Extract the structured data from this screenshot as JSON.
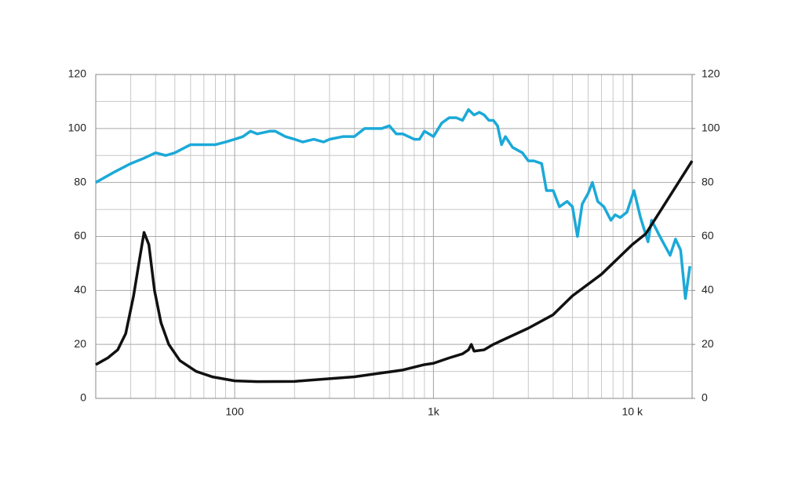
{
  "chart_data": {
    "type": "line",
    "xlog": true,
    "grid": true,
    "minor_grid": true,
    "xlim": [
      20,
      20000
    ],
    "xticks": [
      100,
      {
        "value": 1000,
        "label": "1k"
      },
      {
        "value": 10000,
        "label": "10 k"
      }
    ],
    "ylim": [
      0,
      120
    ],
    "yticks": [
      0,
      20,
      40,
      60,
      80,
      100,
      120
    ],
    "y2lim": [
      0,
      120
    ],
    "y2ticks": [
      0,
      20,
      40,
      60,
      80,
      100,
      120
    ],
    "series": [
      {
        "color": "#1ba9d8",
        "x": [
          20,
          25,
          30,
          35,
          40,
          45,
          50,
          60,
          70,
          80,
          90,
          100,
          110,
          120,
          130,
          150,
          160,
          180,
          200,
          220,
          250,
          280,
          300,
          350,
          400,
          450,
          500,
          550,
          600,
          650,
          700,
          800,
          850,
          900,
          1000,
          1100,
          1200,
          1300,
          1400,
          1500,
          1600,
          1700,
          1800,
          1900,
          2000,
          2100,
          2200,
          2300,
          2500,
          2800,
          3000,
          3200,
          3500,
          3700,
          4000,
          4300,
          4700,
          5000,
          5300,
          5600,
          6000,
          6300,
          6700,
          7200,
          7800,
          8200,
          8700,
          9400,
          10200,
          11000,
          12000,
          12500,
          14000,
          15500,
          16500,
          17500,
          18500,
          19500
        ],
        "values": [
          80,
          84,
          87,
          89,
          91,
          90,
          91,
          94,
          94,
          94,
          95,
          96,
          97,
          99,
          98,
          99,
          99,
          97,
          96,
          95,
          96,
          95,
          96,
          97,
          97,
          100,
          100,
          100,
          101,
          98,
          98,
          96,
          96,
          99,
          97,
          102,
          104,
          104,
          103,
          107,
          105,
          106,
          105,
          103,
          103,
          101,
          94,
          97,
          93,
          91,
          88,
          88,
          87,
          77,
          77,
          71,
          73,
          71,
          60,
          72,
          76,
          80,
          73,
          71,
          66,
          68,
          67,
          69,
          77,
          67,
          58,
          66,
          59,
          53,
          59,
          55,
          37,
          49
        ]
      },
      {
        "color": "#111111",
        "axis": "y2",
        "x": [
          20,
          23,
          25.8,
          28.3,
          31,
          33.3,
          35,
          37,
          39.5,
          42.6,
          46.6,
          53,
          64,
          77,
          100,
          130,
          200,
          300,
          400,
          500,
          700,
          900,
          1000,
          1200,
          1400,
          1500,
          1550,
          1600,
          1800,
          2000,
          3000,
          4000,
          5000,
          7000,
          10000,
          11700,
          14000,
          20000
        ],
        "values": [
          12.5,
          15,
          18,
          24,
          38,
          52,
          61.5,
          57,
          40,
          28,
          20,
          14,
          10,
          8,
          6.5,
          6.2,
          6.3,
          7.3,
          8,
          9,
          10.5,
          12.5,
          13,
          15,
          16.5,
          18,
          20,
          17.5,
          18,
          20,
          26,
          31,
          38,
          46,
          57,
          61,
          70,
          88
        ]
      }
    ]
  }
}
